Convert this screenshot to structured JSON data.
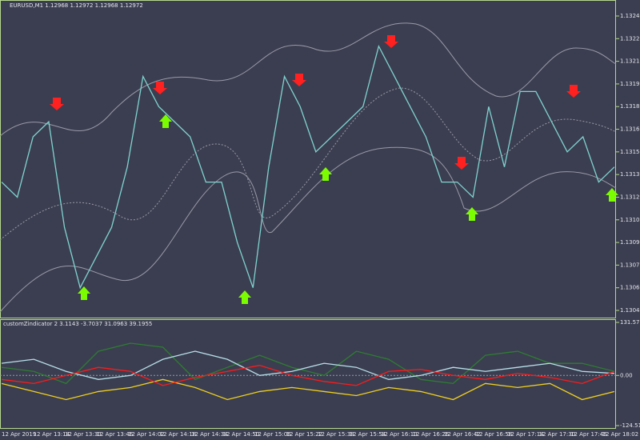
{
  "header": {
    "title": "EURUSD,M1 1.12968 1.12972 1.12968 1.12972"
  },
  "main_chart": {
    "type": "line",
    "color": "#7fd4d0",
    "values": [
      1.1313,
      1.1312,
      1.1316,
      1.1317,
      1.131,
      1.1306,
      1.1308,
      1.131,
      1.1314,
      1.132,
      1.1318,
      1.1317,
      1.1316,
      1.1313,
      1.1313,
      1.1309,
      1.1306,
      1.1314,
      1.132,
      1.1318,
      1.1315,
      1.1316,
      1.1317,
      1.1318,
      1.1322,
      1.132,
      1.1318,
      1.1316,
      1.1313,
      1.1313,
      1.1312,
      1.1318,
      1.1314,
      1.1319,
      1.1319,
      1.1317,
      1.1315,
      1.1316,
      1.1313,
      1.1314
    ],
    "ylim": [
      1.13045,
      1.1324
    ],
    "yticks": [
      {
        "value": 1.1324,
        "label": "1.13240"
      },
      {
        "value": 1.13225,
        "label": "1.13225"
      },
      {
        "value": 1.1321,
        "label": "1.13210"
      },
      {
        "value": 1.13195,
        "label": "1.13195"
      },
      {
        "value": 1.1318,
        "label": "1.13180"
      },
      {
        "value": 1.13165,
        "label": "1.13165"
      },
      {
        "value": 1.1315,
        "label": "1.13150"
      },
      {
        "value": 1.13135,
        "label": "1.13135"
      },
      {
        "value": 1.1312,
        "label": "1.13120"
      },
      {
        "value": 1.13105,
        "label": "1.13105"
      },
      {
        "value": 1.1309,
        "label": "1.13090"
      },
      {
        "value": 1.13075,
        "label": "1.13075"
      },
      {
        "value": 1.1306,
        "label": "1.13060"
      },
      {
        "value": 1.13045,
        "label": "1.13045"
      }
    ]
  },
  "indicator": {
    "type": "line",
    "title": "customZindicator 2 3.1143 -3.7037 31.0963 39.1955",
    "ylim": [
      -124.5185,
      131.5716
    ],
    "yticks": [
      131.5716,
      {
        "value": 0,
        "label": "0.00"
      },
      -124.5185
    ],
    "series": [
      {
        "color": "#2e7d32",
        "values": [
          20,
          10,
          -20,
          60,
          80,
          70,
          -10,
          20,
          50,
          20,
          0,
          60,
          40,
          -10,
          -20,
          50,
          60,
          30,
          30,
          10
        ]
      },
      {
        "color": "#b8e0ea",
        "values": [
          30,
          40,
          10,
          -10,
          0,
          40,
          60,
          40,
          0,
          10,
          30,
          20,
          -10,
          0,
          20,
          10,
          20,
          30,
          10,
          5
        ]
      },
      {
        "color": "#f0d020",
        "values": [
          -20,
          -40,
          -60,
          -40,
          -30,
          -10,
          -30,
          -60,
          -40,
          -30,
          -40,
          -50,
          -30,
          -40,
          -60,
          -20,
          -30,
          -20,
          -60,
          -40
        ]
      },
      {
        "color": "#ff1a1a",
        "values": [
          -10,
          -20,
          0,
          20,
          10,
          -25,
          -5,
          10,
          25,
          0,
          -15,
          -25,
          10,
          15,
          0,
          -10,
          5,
          -5,
          -20,
          10
        ]
      }
    ]
  },
  "time_axis": {
    "labels": [
      "12 Apr 2019",
      "12 Apr 13:14",
      "12 Apr 13:30",
      "12 Apr 13:46",
      "12 Apr 14:02",
      "12 Apr 14:18",
      "12 Apr 14:34",
      "12 Apr 14:50",
      "12 Apr 15:06",
      "12 Apr 15:22",
      "12 Apr 15:38",
      "12 Apr 15:54",
      "12 Apr 16:10",
      "12 Apr 16:26",
      "12 Apr 16:42",
      "12 Apr 16:58",
      "12 Apr 17:14",
      "12 Apr 17:30",
      "12 Apr 17:46",
      "12 Apr 18:02"
    ]
  }
}
